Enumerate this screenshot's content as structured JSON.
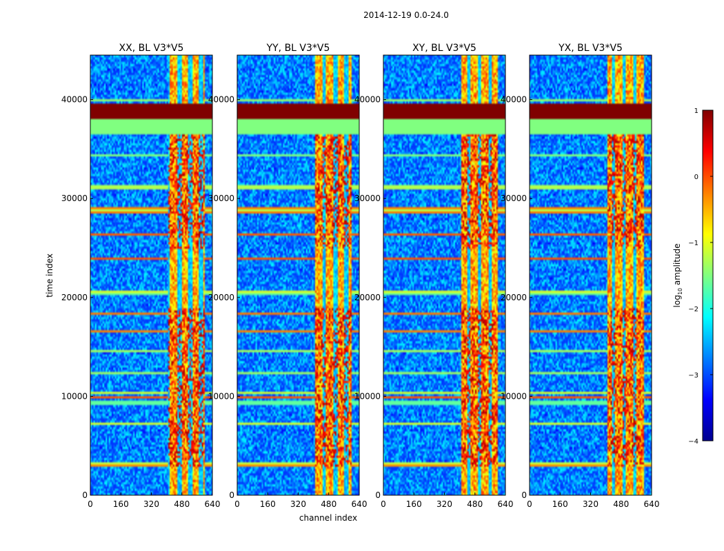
{
  "figure": {
    "suptitle": "2014-12-19 0.0-24.0",
    "xlabel": "channel index",
    "ylabel": "time index"
  },
  "chart_data": {
    "type": "heatmap",
    "x_range": [
      0,
      640
    ],
    "y_range": [
      0,
      44500
    ],
    "x_ticks": [
      0,
      160,
      320,
      480,
      640
    ],
    "y_ticks": [
      0,
      10000,
      20000,
      30000,
      40000
    ],
    "colormap": "jet",
    "color_scale": "log10",
    "colorbar": {
      "label": "log10 amplitude",
      "label_main": "log",
      "label_sub": "10",
      "label_rest": " amplitude",
      "range": [
        -4,
        1
      ],
      "ticks": [
        {
          "value": 1,
          "text": "1"
        },
        {
          "value": 0,
          "text": "0"
        },
        {
          "value": -1,
          "text": "−1"
        },
        {
          "value": -2,
          "text": "−2"
        },
        {
          "value": -3,
          "text": "−3"
        },
        {
          "value": -4,
          "text": "−4"
        }
      ]
    },
    "panels": [
      {
        "title": "XX, BL V3*V5"
      },
      {
        "title": "YY, BL V3*V5"
      },
      {
        "title": "XY, BL V3*V5"
      },
      {
        "title": "YX, BL V3*V5"
      }
    ],
    "features": {
      "strong_channel_range": [
        405,
        600
      ],
      "saturated_time_band": [
        38100,
        39600
      ],
      "midlevel_time_band": [
        36600,
        38100
      ],
      "active_time_ranges": [
        [
          3000,
          19000
        ],
        [
          25000,
          36500
        ]
      ]
    }
  }
}
